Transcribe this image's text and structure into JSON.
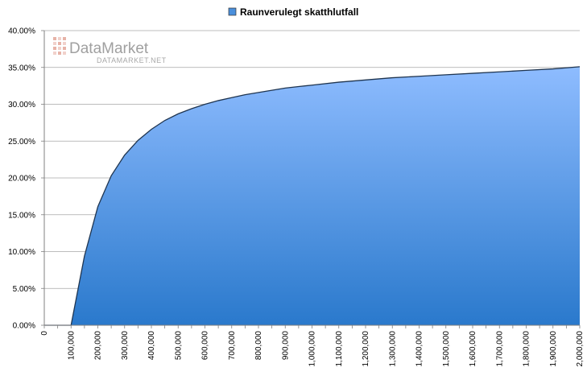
{
  "watermark": {
    "name": "DataMarket",
    "url": "DATAMARKET.NET"
  },
  "chart_data": {
    "type": "area",
    "title": "",
    "xlabel": "",
    "ylabel": "",
    "legend": {
      "position": "top",
      "entries": [
        "Raunverulegt skatthlutfall"
      ]
    },
    "xlim": [
      0,
      2000000
    ],
    "ylim": [
      0,
      0.4
    ],
    "x_ticks": [
      0,
      100000,
      200000,
      300000,
      400000,
      500000,
      600000,
      700000,
      800000,
      900000,
      1000000,
      1100000,
      1200000,
      1300000,
      1400000,
      1500000,
      1600000,
      1700000,
      1800000,
      1900000,
      2000000
    ],
    "x_tick_labels": [
      "0",
      "100,000",
      "200,000",
      "300,000",
      "400,000",
      "500,000",
      "600,000",
      "700,000",
      "800,000",
      "900,000",
      "1,000,000",
      "1,100,000",
      "1,200,000",
      "1,300,000",
      "1,400,000",
      "1,500,000",
      "1,600,000",
      "1,700,000",
      "1,800,000",
      "1,900,000",
      "2,000,000"
    ],
    "y_ticks": [
      0,
      0.05,
      0.1,
      0.15,
      0.2,
      0.25,
      0.3,
      0.35,
      0.4
    ],
    "y_tick_labels": [
      "0.00%",
      "5.00%",
      "10.00%",
      "15.00%",
      "20.00%",
      "25.00%",
      "30.00%",
      "35.00%",
      "40.00%"
    ],
    "grid": "horizontal",
    "colors": {
      "fill_top": "#8ebcff",
      "fill_bottom": "#2a79cc",
      "line": "#1f3550",
      "legend_swatch": "#4a8fdc"
    },
    "series": [
      {
        "name": "Raunverulegt skatthlutfall",
        "x": [
          0,
          50000,
          100000,
          150000,
          200000,
          250000,
          300000,
          350000,
          400000,
          450000,
          500000,
          550000,
          600000,
          650000,
          700000,
          750000,
          800000,
          850000,
          900000,
          950000,
          1000000,
          1100000,
          1200000,
          1300000,
          1400000,
          1500000,
          1600000,
          1700000,
          1800000,
          1900000,
          2000000
        ],
        "values": [
          0.0,
          0.0,
          0.0,
          0.094,
          0.161,
          0.203,
          0.231,
          0.251,
          0.266,
          0.278,
          0.287,
          0.294,
          0.3,
          0.305,
          0.309,
          0.313,
          0.316,
          0.319,
          0.322,
          0.324,
          0.326,
          0.33,
          0.333,
          0.336,
          0.338,
          0.34,
          0.342,
          0.344,
          0.346,
          0.348,
          0.351
        ]
      }
    ]
  }
}
